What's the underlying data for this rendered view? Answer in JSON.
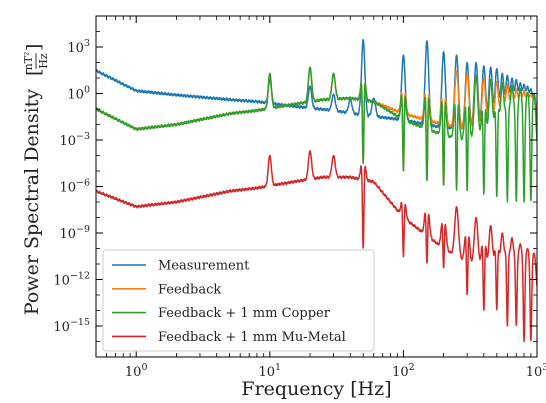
{
  "chart_data": {
    "type": "line",
    "xlabel": "Frequency [Hz]",
    "ylabel": "Power Spectral Density",
    "ylabel_unit": "[nT²/Hz]",
    "xscale": "log",
    "yscale": "log",
    "xlim": [
      0.5,
      1000
    ],
    "ylim": [
      1e-17,
      100000.0
    ],
    "x_ticks": [
      {
        "value": 1,
        "label": "10^0"
      },
      {
        "value": 10,
        "label": "10^1"
      },
      {
        "value": 100,
        "label": "10^2"
      },
      {
        "value": 1000,
        "label": "10^3"
      }
    ],
    "y_ticks": [
      {
        "value": 1000.0,
        "label": "10^3"
      },
      {
        "value": 1.0,
        "label": "10^0"
      },
      {
        "value": 0.001,
        "label": "10^-3"
      },
      {
        "value": 1e-06,
        "label": "10^-6"
      },
      {
        "value": 1e-09,
        "label": "10^-9"
      },
      {
        "value": 1e-12,
        "label": "10^-12"
      },
      {
        "value": 1e-15,
        "label": "10^-15"
      }
    ],
    "grid": false,
    "legend_position": "lower-left",
    "series": [
      {
        "name": "Measurement",
        "color": "#1f77b4",
        "baseline": [
          [
            0.5,
            30
          ],
          [
            1,
            1.5
          ],
          [
            2,
            0.8
          ],
          [
            5,
            0.4
          ],
          [
            8,
            0.3
          ],
          [
            15,
            0.15
          ],
          [
            30,
            0.08
          ],
          [
            50,
            0.04
          ],
          [
            100,
            0.02
          ],
          [
            200,
            0.006
          ],
          [
            500,
            0.004
          ],
          [
            1000,
            0.004
          ]
        ],
        "peaks": [
          [
            10,
            8
          ],
          [
            20,
            3
          ],
          [
            30,
            0.9
          ],
          [
            40,
            0.4
          ],
          [
            50,
            3000
          ],
          [
            60,
            0.5
          ],
          [
            100,
            300
          ],
          [
            150,
            2500
          ],
          [
            200,
            500
          ],
          [
            250,
            300
          ],
          [
            300,
            100
          ],
          [
            350,
            100
          ],
          [
            400,
            60
          ],
          [
            450,
            50
          ],
          [
            500,
            40
          ],
          [
            550,
            20
          ],
          [
            600,
            15
          ],
          [
            650,
            10
          ],
          [
            700,
            8
          ],
          [
            750,
            5
          ],
          [
            800,
            4
          ],
          [
            850,
            3
          ],
          [
            900,
            2
          ],
          [
            950,
            1
          ]
        ],
        "notches": []
      },
      {
        "name": "Feedback",
        "color": "#ff7f0e",
        "baseline": [
          [
            0.5,
            0.1
          ],
          [
            1,
            0.005
          ],
          [
            2,
            0.01
          ],
          [
            5,
            0.05
          ],
          [
            8,
            0.08
          ],
          [
            15,
            0.2
          ],
          [
            25,
            0.4
          ],
          [
            40,
            0.5
          ],
          [
            60,
            0.3
          ],
          [
            100,
            0.05
          ],
          [
            200,
            0.01
          ],
          [
            500,
            0.002
          ],
          [
            1000,
            0.002
          ]
        ],
        "peaks": [
          [
            10,
            20
          ],
          [
            20,
            50
          ],
          [
            30,
            20
          ],
          [
            50,
            200
          ],
          [
            100,
            50
          ],
          [
            150,
            80
          ],
          [
            200,
            40
          ],
          [
            250,
            30
          ],
          [
            300,
            20
          ],
          [
            350,
            15
          ],
          [
            400,
            10
          ],
          [
            450,
            8
          ],
          [
            500,
            6
          ],
          [
            550,
            5
          ],
          [
            600,
            4
          ],
          [
            650,
            3
          ],
          [
            700,
            2
          ],
          [
            750,
            2
          ],
          [
            800,
            1.5
          ],
          [
            850,
            1.2
          ],
          [
            900,
            1
          ],
          [
            950,
            0.8
          ]
        ],
        "notches": [
          [
            50,
            3e-05
          ],
          [
            100,
            1e-05
          ],
          [
            150,
            2e-06
          ],
          [
            200,
            1e-06
          ]
        ]
      },
      {
        "name": "Feedback + 1 mm Copper",
        "color": "#2ca02c",
        "baseline": [
          [
            0.5,
            0.1
          ],
          [
            1,
            0.005
          ],
          [
            2,
            0.01
          ],
          [
            5,
            0.05
          ],
          [
            8,
            0.08
          ],
          [
            15,
            0.2
          ],
          [
            25,
            0.4
          ],
          [
            40,
            0.5
          ],
          [
            60,
            0.3
          ],
          [
            100,
            0.02
          ],
          [
            200,
            0.002
          ],
          [
            500,
            0.0003
          ],
          [
            1000,
            5e-05
          ]
        ],
        "peaks": [
          [
            10,
            20
          ],
          [
            20,
            50
          ],
          [
            30,
            20
          ],
          [
            50,
            200
          ],
          [
            100,
            50
          ],
          [
            150,
            80
          ],
          [
            200,
            40
          ],
          [
            250,
            30
          ],
          [
            300,
            20
          ],
          [
            350,
            15
          ],
          [
            400,
            10
          ],
          [
            450,
            8
          ],
          [
            500,
            6
          ],
          [
            550,
            5
          ],
          [
            600,
            4
          ],
          [
            650,
            3
          ],
          [
            700,
            2
          ],
          [
            750,
            2
          ],
          [
            800,
            1.5
          ],
          [
            850,
            1.2
          ],
          [
            900,
            1
          ],
          [
            950,
            0.8
          ]
        ],
        "notches": [
          [
            50,
            3e-05
          ],
          [
            100,
            1e-05
          ],
          [
            150,
            2e-06
          ],
          [
            200,
            1e-06
          ],
          [
            250,
            5e-07
          ],
          [
            300,
            5e-07
          ],
          [
            400,
            3e-07
          ],
          [
            500,
            2e-07
          ],
          [
            600,
            1e-07
          ],
          [
            700,
            1e-07
          ],
          [
            800,
            1e-07
          ],
          [
            900,
            1e-07
          ]
        ]
      },
      {
        "name": "Feedback + 1 mm Mu-Metal",
        "color": "#d62728",
        "baseline": [
          [
            0.5,
            5e-07
          ],
          [
            1,
            5e-08
          ],
          [
            2,
            1e-07
          ],
          [
            5,
            5e-07
          ],
          [
            8,
            8e-07
          ],
          [
            15,
            2e-06
          ],
          [
            25,
            4e-06
          ],
          [
            40,
            4e-06
          ],
          [
            60,
            2e-06
          ],
          [
            100,
            1e-08
          ],
          [
            200,
            1e-10
          ],
          [
            500,
            1e-12
          ],
          [
            1000,
            5e-14
          ]
        ],
        "peaks": [
          [
            10,
            0.0001
          ],
          [
            20,
            0.0002
          ],
          [
            30,
            0.0001
          ],
          [
            50,
            0.0005
          ],
          [
            100,
            1e-06
          ],
          [
            150,
            5e-07
          ],
          [
            200,
            1e-07
          ],
          [
            250,
            5e-08
          ],
          [
            300,
            2e-08
          ],
          [
            350,
            1e-08
          ],
          [
            400,
            5e-09
          ],
          [
            450,
            3e-09
          ],
          [
            500,
            2e-09
          ],
          [
            550,
            1e-09
          ],
          [
            600,
            8e-10
          ],
          [
            650,
            5e-10
          ],
          [
            700,
            3e-10
          ],
          [
            750,
            2e-10
          ],
          [
            800,
            1.5e-10
          ],
          [
            850,
            1e-10
          ],
          [
            900,
            8e-11
          ],
          [
            950,
            5e-11
          ]
        ],
        "notches": [
          [
            50,
            1e-10
          ],
          [
            100,
            3e-11
          ],
          [
            150,
            1e-11
          ],
          [
            200,
            5e-12
          ],
          [
            300,
            1e-13
          ],
          [
            400,
            1e-14
          ],
          [
            500,
            1e-14
          ],
          [
            600,
            1e-15
          ],
          [
            700,
            1e-15
          ],
          [
            800,
            1e-16
          ],
          [
            900,
            1e-16
          ]
        ]
      }
    ]
  }
}
